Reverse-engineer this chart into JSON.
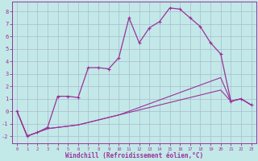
{
  "xlabel": "Windchill (Refroidissement éolien,°C)",
  "xlim": [
    -0.5,
    23.5
  ],
  "ylim": [
    -2.6,
    8.8
  ],
  "xtick_vals": [
    0,
    1,
    2,
    3,
    4,
    5,
    6,
    7,
    8,
    9,
    10,
    11,
    12,
    13,
    14,
    15,
    16,
    17,
    18,
    19,
    20,
    21,
    22,
    23
  ],
  "ytick_vals": [
    -2,
    -1,
    0,
    1,
    2,
    3,
    4,
    5,
    6,
    7,
    8
  ],
  "background_color": "#c3e8e8",
  "grid_color": "#aabbd0",
  "line_color": "#993399",
  "main_x": [
    0,
    1,
    2,
    3,
    4,
    5,
    6,
    7,
    8,
    9,
    10,
    11,
    12,
    13,
    14,
    15,
    16,
    17,
    18,
    19,
    20,
    21,
    22,
    23
  ],
  "main_y": [
    0.0,
    -2.0,
    -1.7,
    -1.3,
    1.2,
    1.2,
    1.1,
    3.5,
    3.5,
    3.4,
    4.3,
    7.5,
    5.5,
    6.7,
    7.2,
    8.3,
    8.2,
    7.5,
    6.8,
    5.5,
    4.6,
    0.8,
    1.0,
    0.5
  ],
  "fan1_x": [
    0,
    1,
    2,
    3,
    4,
    5,
    6,
    7,
    8,
    9,
    10,
    11,
    12,
    13,
    14,
    15,
    16,
    17,
    18,
    19,
    20,
    21,
    22,
    23
  ],
  "fan1_y": [
    0.0,
    -2.0,
    -1.7,
    -1.4,
    -1.3,
    -1.2,
    -1.1,
    -0.9,
    -0.7,
    -0.5,
    -0.3,
    0.0,
    0.3,
    0.6,
    0.9,
    1.2,
    1.5,
    1.8,
    2.1,
    2.4,
    2.7,
    0.8,
    1.0,
    0.5
  ],
  "fan2_x": [
    0,
    1,
    2,
    3,
    4,
    5,
    6,
    7,
    8,
    9,
    10,
    11,
    12,
    13,
    14,
    15,
    16,
    17,
    18,
    19,
    20,
    21,
    22,
    23
  ],
  "fan2_y": [
    0.0,
    -2.0,
    -1.7,
    -1.4,
    -1.3,
    -1.2,
    -1.1,
    -0.9,
    -0.7,
    -0.5,
    -0.3,
    -0.1,
    0.1,
    0.3,
    0.5,
    0.7,
    0.9,
    1.1,
    1.3,
    1.5,
    1.7,
    0.8,
    1.0,
    0.5
  ]
}
